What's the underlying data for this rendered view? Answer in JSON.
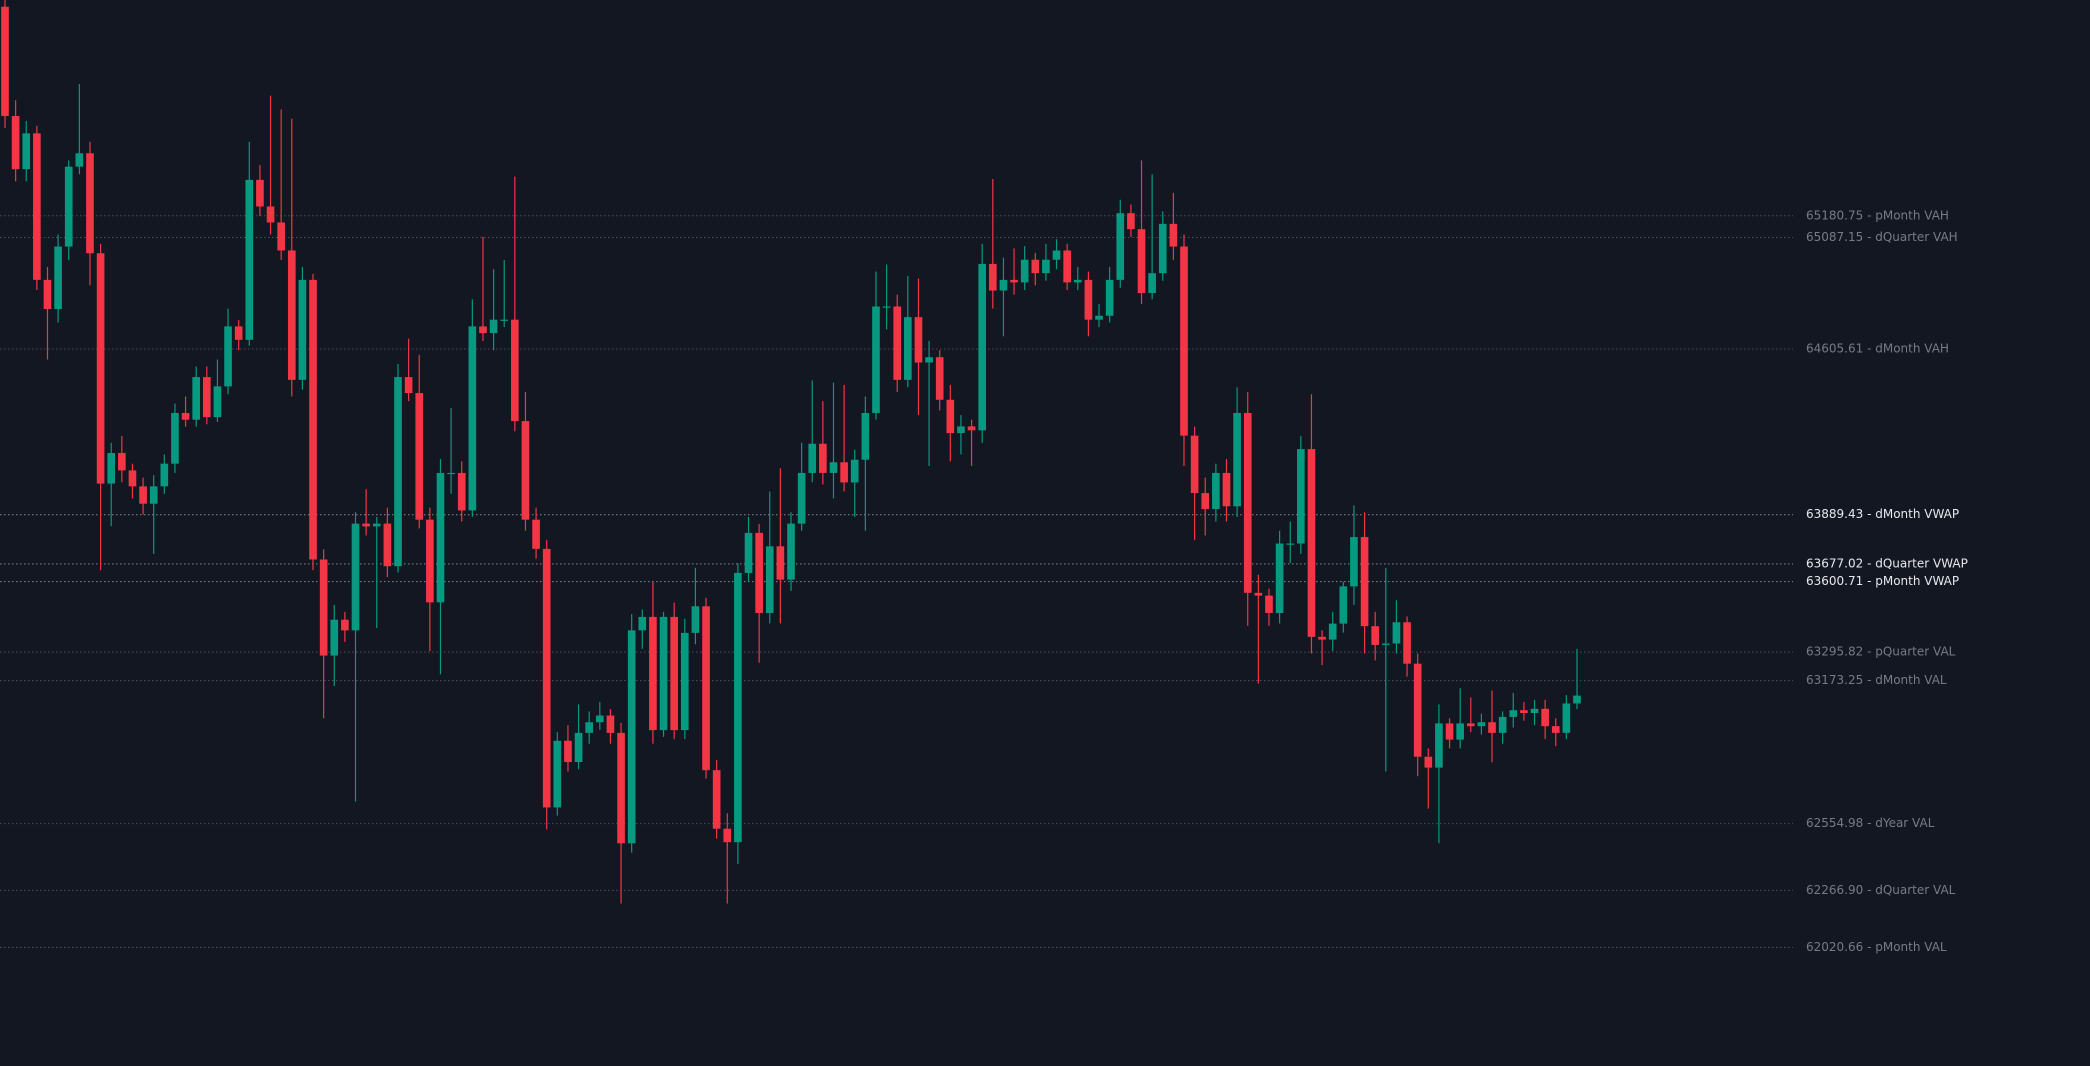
{
  "chart_data": {
    "type": "candlestick",
    "up_color": "#089981",
    "down_color": "#f23645",
    "ylim": [
      61508,
      66113
    ],
    "ohlc": [
      [
        66084,
        66113,
        65560,
        65612
      ],
      [
        65612,
        65680,
        65330,
        65382
      ],
      [
        65382,
        65590,
        65330,
        65537
      ],
      [
        65537,
        65570,
        64860,
        64904
      ],
      [
        64904,
        64960,
        64560,
        64778
      ],
      [
        64778,
        65100,
        64720,
        65048
      ],
      [
        65048,
        65420,
        64990,
        65393
      ],
      [
        65393,
        65750,
        65360,
        65451
      ],
      [
        65451,
        65500,
        64880,
        65019
      ],
      [
        65019,
        65060,
        63650,
        64024
      ],
      [
        64024,
        64200,
        63840,
        64156
      ],
      [
        64156,
        64230,
        64030,
        64081
      ],
      [
        64081,
        64110,
        63960,
        64012
      ],
      [
        64012,
        64050,
        63890,
        63937
      ],
      [
        63937,
        64060,
        63720,
        64012
      ],
      [
        64012,
        64150,
        63980,
        64110
      ],
      [
        64110,
        64370,
        64070,
        64329
      ],
      [
        64329,
        64400,
        64270,
        64300
      ],
      [
        64300,
        64530,
        64270,
        64484
      ],
      [
        64484,
        64530,
        64280,
        64311
      ],
      [
        64311,
        64560,
        64290,
        64444
      ],
      [
        64444,
        64780,
        64410,
        64703
      ],
      [
        64703,
        64730,
        64600,
        64645
      ],
      [
        64645,
        65500,
        64620,
        65336
      ],
      [
        65336,
        65400,
        65180,
        65221
      ],
      [
        65221,
        65700,
        65100,
        65152
      ],
      [
        65152,
        65640,
        64990,
        65031
      ],
      [
        65031,
        65600,
        64400,
        64472
      ],
      [
        64472,
        64960,
        64430,
        64904
      ],
      [
        64904,
        64930,
        63650,
        63696
      ],
      [
        63696,
        63740,
        63010,
        63281
      ],
      [
        63281,
        63500,
        63150,
        63436
      ],
      [
        63436,
        63470,
        63340,
        63390
      ],
      [
        63390,
        63900,
        62650,
        63851
      ],
      [
        63851,
        64000,
        63800,
        63839
      ],
      [
        63839,
        63880,
        63400,
        63851
      ],
      [
        63851,
        63920,
        63620,
        63667
      ],
      [
        63667,
        64540,
        63640,
        64484
      ],
      [
        64484,
        64650,
        64380,
        64415
      ],
      [
        64415,
        64580,
        63830,
        63868
      ],
      [
        63868,
        63920,
        63300,
        63511
      ],
      [
        63511,
        64130,
        63200,
        64070
      ],
      [
        64070,
        64350,
        63980,
        64070
      ],
      [
        64070,
        64120,
        63860,
        63908
      ],
      [
        63908,
        64820,
        63880,
        64703
      ],
      [
        64703,
        65090,
        64640,
        64674
      ],
      [
        64674,
        64950,
        64600,
        64732
      ],
      [
        64732,
        64990,
        64700,
        64732
      ],
      [
        64732,
        65350,
        64250,
        64294
      ],
      [
        64294,
        64420,
        63820,
        63868
      ],
      [
        63868,
        63920,
        63700,
        63742
      ],
      [
        63742,
        63780,
        62530,
        62625
      ],
      [
        62625,
        62950,
        62590,
        62913
      ],
      [
        62913,
        62980,
        62780,
        62821
      ],
      [
        62821,
        63070,
        62790,
        62947
      ],
      [
        62947,
        63040,
        62900,
        62993
      ],
      [
        62993,
        63080,
        62960,
        63022
      ],
      [
        63022,
        63050,
        62900,
        62947
      ],
      [
        62947,
        62990,
        62210,
        62470
      ],
      [
        62470,
        63460,
        62430,
        63390
      ],
      [
        63390,
        63480,
        63310,
        63448
      ],
      [
        63448,
        63600,
        62900,
        62959
      ],
      [
        62959,
        63470,
        62930,
        63448
      ],
      [
        63448,
        63510,
        62920,
        62959
      ],
      [
        62959,
        63440,
        62920,
        63379
      ],
      [
        63379,
        63660,
        63330,
        63494
      ],
      [
        63494,
        63530,
        62750,
        62786
      ],
      [
        62786,
        62830,
        62490,
        62533
      ],
      [
        62533,
        62600,
        62210,
        62475
      ],
      [
        62475,
        63680,
        62380,
        63638
      ],
      [
        63638,
        63880,
        63600,
        63811
      ],
      [
        63811,
        63850,
        63250,
        63465
      ],
      [
        63465,
        63990,
        63420,
        63753
      ],
      [
        63753,
        64090,
        63420,
        63609
      ],
      [
        63609,
        63900,
        63560,
        63851
      ],
      [
        63851,
        64200,
        63820,
        64070
      ],
      [
        64070,
        64470,
        64030,
        64196
      ],
      [
        64196,
        64380,
        64020,
        64070
      ],
      [
        64070,
        64460,
        63960,
        64116
      ],
      [
        64116,
        64450,
        63990,
        64029
      ],
      [
        64029,
        64170,
        63880,
        64127
      ],
      [
        64127,
        64400,
        63820,
        64329
      ],
      [
        64329,
        64940,
        64300,
        64789
      ],
      [
        64789,
        64970,
        64690,
        64789
      ],
      [
        64789,
        64840,
        64420,
        64472
      ],
      [
        64472,
        64920,
        64440,
        64743
      ],
      [
        64743,
        64910,
        64320,
        64547
      ],
      [
        64547,
        64640,
        64100,
        64570
      ],
      [
        64570,
        64600,
        64340,
        64386
      ],
      [
        64386,
        64450,
        64120,
        64242
      ],
      [
        64242,
        64320,
        64150,
        64271
      ],
      [
        64271,
        64300,
        64100,
        64254
      ],
      [
        64254,
        65060,
        64200,
        64973
      ],
      [
        64973,
        65340,
        64780,
        64858
      ],
      [
        64858,
        65000,
        64660,
        64904
      ],
      [
        64904,
        65040,
        64840,
        64893
      ],
      [
        64893,
        65050,
        64860,
        64991
      ],
      [
        64991,
        65020,
        64880,
        64933
      ],
      [
        64933,
        65060,
        64900,
        64991
      ],
      [
        64991,
        65080,
        64950,
        65031
      ],
      [
        65031,
        65060,
        64860,
        64893
      ],
      [
        64893,
        64960,
        64860,
        64904
      ],
      [
        64904,
        64940,
        64660,
        64732
      ],
      [
        64732,
        64800,
        64700,
        64749
      ],
      [
        64749,
        64960,
        64720,
        64904
      ],
      [
        64904,
        65250,
        64870,
        65192
      ],
      [
        65192,
        65230,
        65090,
        65123
      ],
      [
        65123,
        65420,
        64800,
        64847
      ],
      [
        64847,
        65360,
        64820,
        64933
      ],
      [
        64933,
        65200,
        64900,
        65146
      ],
      [
        65146,
        65280,
        64990,
        65048
      ],
      [
        65048,
        65100,
        64100,
        64231
      ],
      [
        64231,
        64270,
        63780,
        63983
      ],
      [
        63983,
        64050,
        63800,
        63914
      ],
      [
        63914,
        64110,
        63860,
        64070
      ],
      [
        64070,
        64130,
        63860,
        63926
      ],
      [
        63926,
        64440,
        63880,
        64329
      ],
      [
        64329,
        64420,
        63410,
        63552
      ],
      [
        63552,
        63630,
        63160,
        63540
      ],
      [
        63540,
        63570,
        63410,
        63465
      ],
      [
        63465,
        63820,
        63420,
        63765
      ],
      [
        63765,
        63860,
        63680,
        63765
      ],
      [
        63765,
        64230,
        63720,
        64173
      ],
      [
        64173,
        64410,
        63290,
        63362
      ],
      [
        63362,
        63390,
        63240,
        63350
      ],
      [
        63350,
        63470,
        63300,
        63419
      ],
      [
        63419,
        63600,
        63380,
        63580
      ],
      [
        63580,
        63930,
        63500,
        63793
      ],
      [
        63793,
        63900,
        63290,
        63408
      ],
      [
        63408,
        63470,
        63260,
        63327
      ],
      [
        63327,
        63660,
        62780,
        63333
      ],
      [
        63333,
        63520,
        63290,
        63425
      ],
      [
        63425,
        63450,
        63190,
        63246
      ],
      [
        63246,
        63290,
        62760,
        62844
      ],
      [
        62844,
        62880,
        62620,
        62797
      ],
      [
        62797,
        63070,
        62470,
        62988
      ],
      [
        62988,
        63010,
        62880,
        62918
      ],
      [
        62918,
        63140,
        62880,
        62988
      ],
      [
        62988,
        63100,
        62950,
        62976
      ],
      [
        62976,
        63030,
        62940,
        62993
      ],
      [
        62993,
        63130,
        62820,
        62947
      ],
      [
        62947,
        63040,
        62900,
        63016
      ],
      [
        63016,
        63120,
        62970,
        63045
      ],
      [
        63045,
        63080,
        63000,
        63033
      ],
      [
        63033,
        63090,
        62980,
        63051
      ],
      [
        63051,
        63090,
        62920,
        62976
      ],
      [
        62976,
        63010,
        62890,
        62947
      ],
      [
        62947,
        63110,
        62920,
        63074
      ],
      [
        63074,
        63310,
        63050,
        63108
      ]
    ],
    "levels": [
      {
        "value": 65180.75,
        "label": "65180.75 - pMonth VAH",
        "color": "#787b86"
      },
      {
        "value": 65087.15,
        "label": "65087.15 - dQuarter VAH",
        "color": "#787b86"
      },
      {
        "value": 64605.61,
        "label": "64605.61 - dMonth VAH",
        "color": "#787b86"
      },
      {
        "value": 63889.43,
        "label": "63889.43 - dMonth VWAP",
        "color": "#e6e8ee"
      },
      {
        "value": 63677.02,
        "label": "63677.02 - dQuarter VWAP",
        "color": "#e6e8ee"
      },
      {
        "value": 63600.71,
        "label": "63600.71 - pMonth VWAP",
        "color": "#e6e8ee"
      },
      {
        "value": 63295.82,
        "label": "63295.82 - pQuarter VAL",
        "color": "#787b86"
      },
      {
        "value": 63173.25,
        "label": "63173.25 - dMonth VAL",
        "color": "#787b86"
      },
      {
        "value": 62554.98,
        "label": "62554.98 - dYear VAL",
        "color": "#787b86"
      },
      {
        "value": 62266.9,
        "label": "62266.90 - dQuarter VAL",
        "color": "#787b86"
      },
      {
        "value": 62020.66,
        "label": "62020.66 - pMonth VAL",
        "color": "#787b86"
      }
    ]
  }
}
